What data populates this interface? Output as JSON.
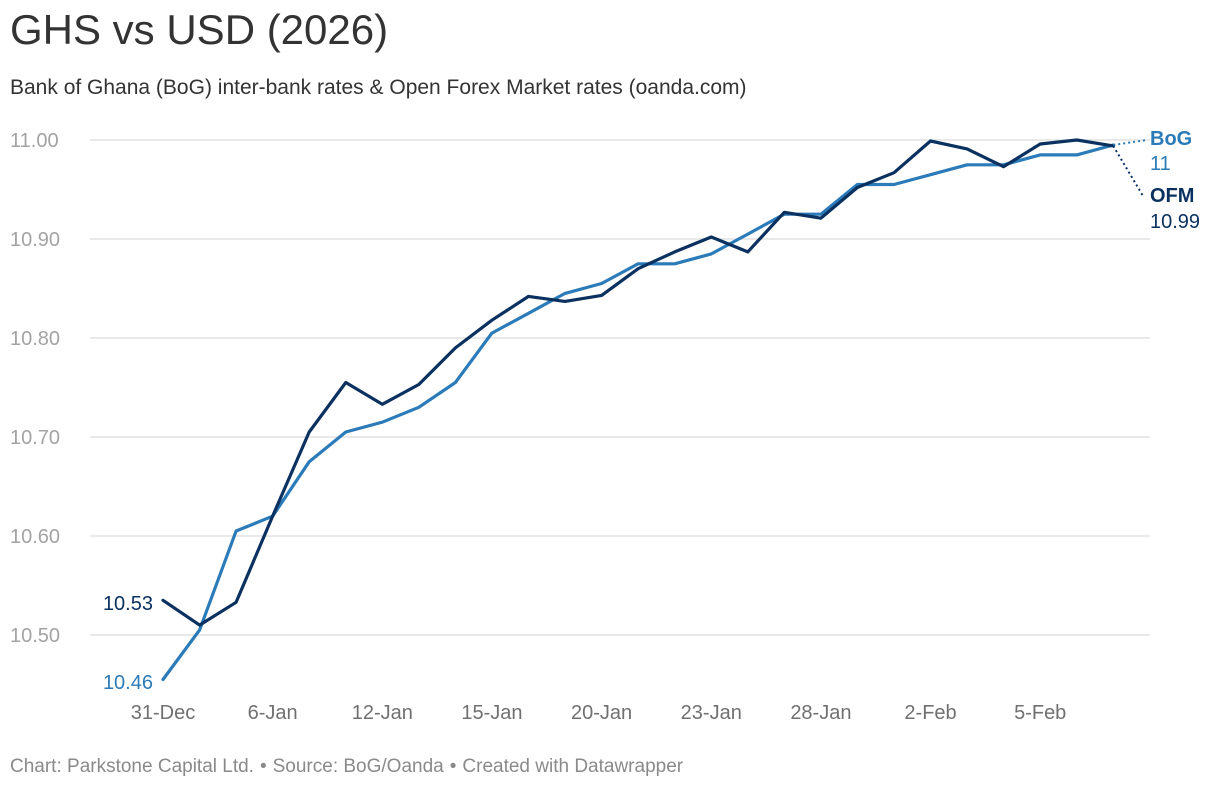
{
  "header": {
    "title": "GHS vs USD (2026)",
    "subtitle": "Bank of Ghana (BoG) inter-bank rates & Open Forex Market rates (oanda.com)"
  },
  "footer": {
    "chart_credit": "Chart: Parkstone Capital Ltd.",
    "separator": "•",
    "source": "Source: BoG/Oanda",
    "tool": "Created with Datawrapper"
  },
  "colors": {
    "bog": "#2b7bb9",
    "ofm": "#0b3160",
    "grid": "#e2e2e2",
    "text": "#333333"
  },
  "chart_data": {
    "type": "line",
    "title": "GHS vs USD (2026)",
    "xlabel": "",
    "ylabel": "",
    "ylim": [
      10.44,
      11.01
    ],
    "yticks": [
      10.5,
      10.6,
      10.7,
      10.8,
      10.9,
      11.0
    ],
    "ytick_labels": [
      "10.50",
      "10.60",
      "10.70",
      "10.80",
      "10.90",
      "11.00"
    ],
    "x_labels": [
      {
        "index": 0,
        "label": "31-Dec"
      },
      {
        "index": 3,
        "label": "6-Jan"
      },
      {
        "index": 6,
        "label": "12-Jan"
      },
      {
        "index": 9,
        "label": "15-Jan"
      },
      {
        "index": 12,
        "label": "20-Jan"
      },
      {
        "index": 15,
        "label": "23-Jan"
      },
      {
        "index": 18,
        "label": "28-Jan"
      },
      {
        "index": 21,
        "label": "2-Feb"
      },
      {
        "index": 24,
        "label": "5-Feb"
      }
    ],
    "num_points": 27,
    "legend": "end-of-line labels",
    "series": [
      {
        "name": "BoG",
        "end_label": "11",
        "start_label": "10.46",
        "values": [
          10.455,
          10.505,
          10.605,
          10.62,
          10.675,
          10.705,
          10.715,
          10.73,
          10.755,
          10.805,
          10.825,
          10.845,
          10.855,
          10.875,
          10.875,
          10.885,
          10.905,
          10.925,
          10.925,
          10.955,
          10.955,
          10.965,
          10.975,
          10.975,
          10.985,
          10.985,
          10.995
        ]
      },
      {
        "name": "OFM",
        "end_label": "10.99",
        "start_label": "10.53",
        "values": [
          10.535,
          10.51,
          10.533,
          10.62,
          10.705,
          10.755,
          10.733,
          10.753,
          10.79,
          10.818,
          10.842,
          10.837,
          10.843,
          10.87,
          10.887,
          10.902,
          10.887,
          10.927,
          10.921,
          10.952,
          10.967,
          10.999,
          10.991,
          10.973,
          10.996,
          11.0,
          10.994
        ]
      }
    ]
  }
}
